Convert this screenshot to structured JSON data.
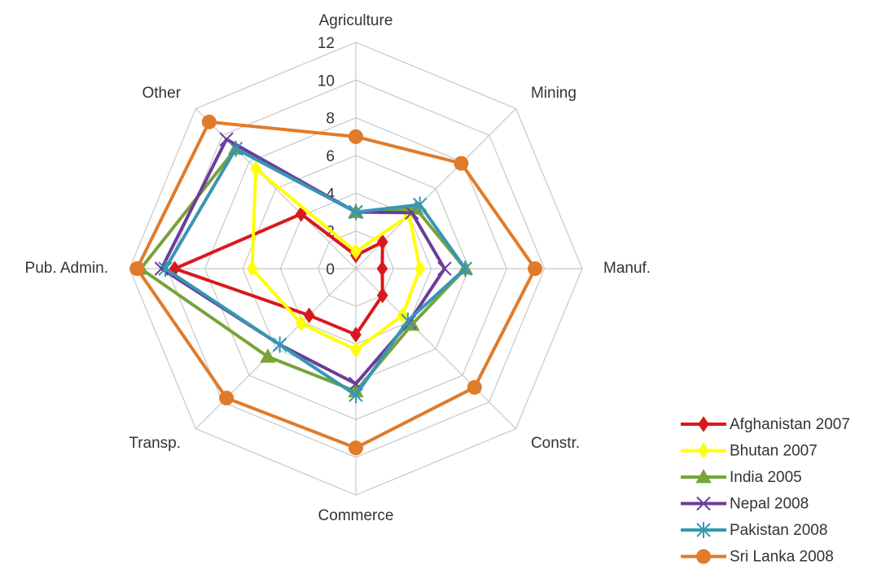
{
  "chart_data": {
    "type": "radar",
    "categories": [
      "Agriculture",
      "Mining",
      "Manuf.",
      "Constr.",
      "Commerce",
      "Transp.",
      "Pub. Admin.",
      "Other"
    ],
    "ylim": [
      0,
      12
    ],
    "yticks": [
      0,
      2,
      4,
      6,
      8,
      10,
      12
    ],
    "grid": true,
    "legend": "bottom-right",
    "series": [
      {
        "name": "Afghanistan 2007",
        "color": "#d9181e",
        "marker": "diamond",
        "values": [
          0.7,
          2,
          1.4,
          2,
          3.5,
          3.5,
          9.6,
          4.1
        ]
      },
      {
        "name": "Bhutan 2007",
        "color": "#ffff00",
        "marker": "diamond",
        "values": [
          0.9,
          4,
          3.4,
          3.5,
          4.3,
          4.1,
          5.5,
          7.5
        ]
      },
      {
        "name": "India 2005",
        "color": "#77a33a",
        "marker": "triangle",
        "values": [
          3,
          4.5,
          5.8,
          4.2,
          6.5,
          6.6,
          11.4,
          9
        ]
      },
      {
        "name": "Nepal 2008",
        "color": "#6a3d9a",
        "marker": "x",
        "values": [
          3,
          4.2,
          4.7,
          4,
          6.1,
          5.7,
          10.3,
          9.7
        ]
      },
      {
        "name": "Pakistan 2008",
        "color": "#3796b3",
        "marker": "star",
        "values": [
          3,
          4.8,
          5.8,
          3.9,
          6.7,
          5.7,
          10.1,
          9
        ]
      },
      {
        "name": "Sri Lanka 2008",
        "color": "#e07b2a",
        "marker": "circle",
        "values": [
          7,
          7.9,
          9.5,
          8.9,
          9.5,
          9.7,
          11.6,
          11
        ]
      }
    ]
  }
}
